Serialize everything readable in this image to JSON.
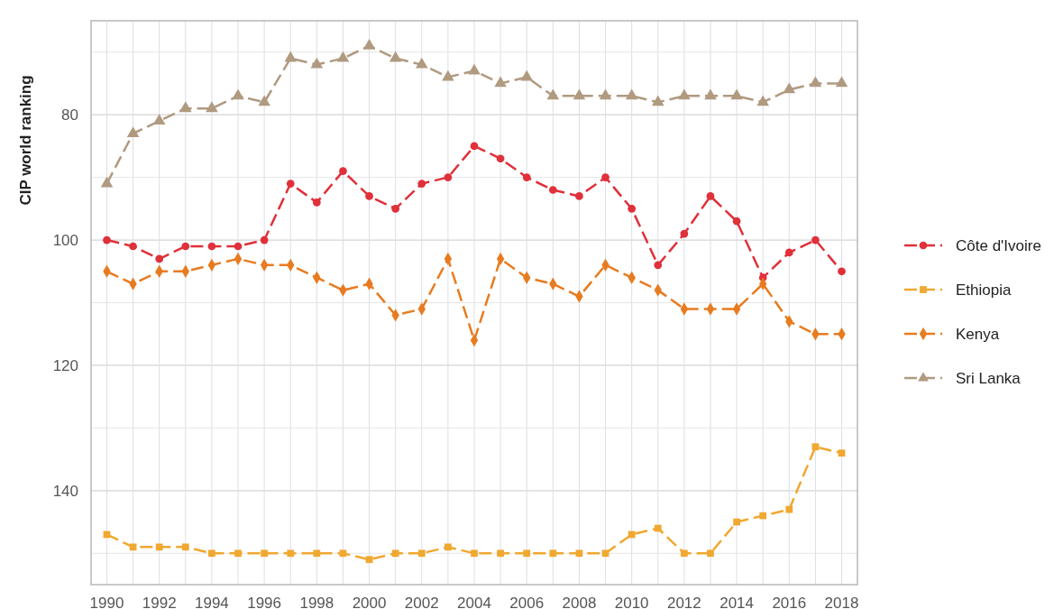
{
  "chart_data": {
    "type": "line",
    "ylabel": "CIP world ranking",
    "xlim": [
      1989.4,
      2018.6
    ],
    "ylim": [
      155,
      65
    ],
    "xticks": [
      1990,
      {
        "value": 1991,
        "label": null
      },
      1992,
      {
        "value": 1993,
        "label": null
      },
      1994,
      {
        "value": 1995,
        "label": null
      },
      1996,
      {
        "value": 1997,
        "label": null
      },
      1998,
      {
        "value": 1999,
        "label": null
      },
      2000,
      {
        "value": 2001,
        "label": null
      },
      2002,
      {
        "value": 2003,
        "label": null
      },
      2004,
      {
        "value": 2005,
        "label": null
      },
      2006,
      {
        "value": 2007,
        "label": null
      },
      2008,
      {
        "value": 2009,
        "label": null
      },
      2010,
      {
        "value": 2011,
        "label": null
      },
      2012,
      {
        "value": 2013,
        "label": null
      },
      2014,
      {
        "value": 2015,
        "label": null
      },
      2016,
      {
        "value": 2017,
        "label": null
      },
      2018
    ],
    "yticks": [
      {
        "value": 70,
        "label": null
      },
      80,
      {
        "value": 90,
        "label": null
      },
      100,
      {
        "value": 110,
        "label": null
      },
      120,
      {
        "value": 130,
        "label": null
      },
      140,
      {
        "value": 150,
        "label": null
      }
    ],
    "grid": true,
    "legend": "right",
    "line_style": "dashed",
    "x": [
      1990,
      1991,
      1992,
      1993,
      1994,
      1995,
      1996,
      1997,
      1998,
      1999,
      2000,
      2001,
      2002,
      2003,
      2004,
      2005,
      2006,
      2007,
      2008,
      2009,
      2010,
      2011,
      2012,
      2013,
      2014,
      2015,
      2016,
      2017,
      2018
    ],
    "series": [
      {
        "name": "Côte d'Ivoire",
        "color": "#e0303a",
        "marker": "circle",
        "values": [
          100,
          101,
          103,
          101,
          101,
          101,
          100,
          91,
          94,
          89,
          93,
          95,
          91,
          90,
          85,
          87,
          90,
          92,
          93,
          90,
          95,
          104,
          99,
          93,
          97,
          106,
          102,
          100,
          105
        ]
      },
      {
        "name": "Ethiopia",
        "color": "#f0a830",
        "marker": "square",
        "values": [
          147,
          149,
          149,
          149,
          150,
          150,
          150,
          150,
          150,
          150,
          151,
          150,
          150,
          149,
          150,
          150,
          150,
          150,
          150,
          150,
          147,
          146,
          150,
          150,
          145,
          144,
          143,
          133,
          134
        ]
      },
      {
        "name": "Kenya",
        "color": "#e87b20",
        "marker": "diamond",
        "values": [
          105,
          107,
          105,
          105,
          104,
          103,
          104,
          104,
          106,
          108,
          107,
          112,
          111,
          103,
          116,
          103,
          106,
          107,
          109,
          104,
          106,
          108,
          111,
          111,
          111,
          107,
          113,
          115,
          115
        ]
      },
      {
        "name": "Sri Lanka",
        "color": "#b09a80",
        "marker": "triangle",
        "values": [
          91,
          83,
          81,
          79,
          79,
          77,
          78,
          71,
          72,
          71,
          69,
          71,
          72,
          74,
          73,
          75,
          74,
          77,
          77,
          77,
          77,
          78,
          77,
          77,
          77,
          78,
          76,
          75,
          75
        ]
      }
    ]
  }
}
